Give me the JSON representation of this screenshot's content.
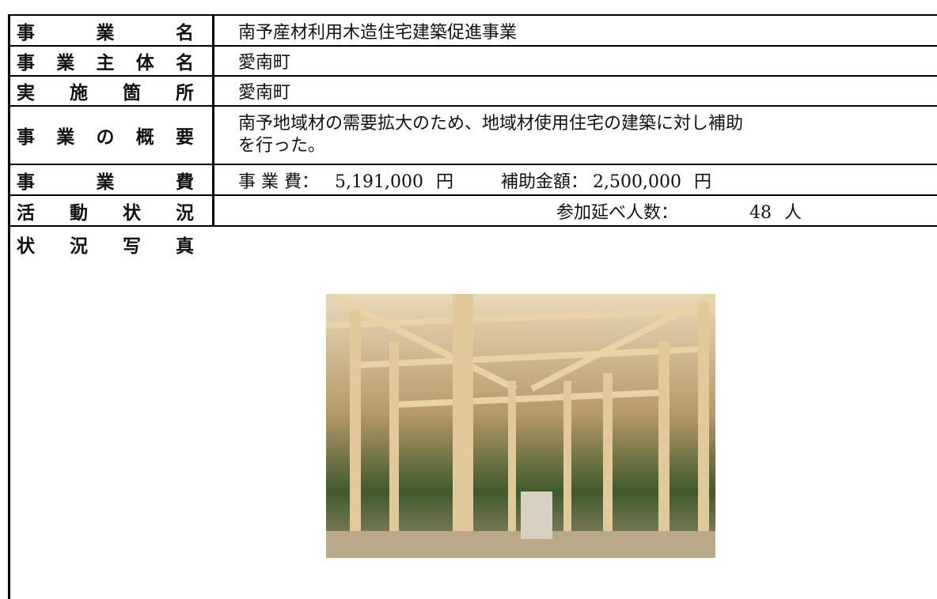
{
  "table": {
    "rows": [
      {
        "label": "事業名",
        "value": "南予産材利用木造住宅建築促進事業"
      },
      {
        "label": "事業主体名",
        "value": "愛南町"
      },
      {
        "label": "実施箇所",
        "value": "愛南町"
      },
      {
        "label": "事業の概要",
        "value": [
          "南予地域材の需要拡大のため、地域材使用住宅の建築に対し補助",
          "を行った。"
        ]
      },
      {
        "label": "事業費",
        "cost_label": "事 業 費：",
        "cost": "5,191,000",
        "cost_unit": "円",
        "subsidy_label": "補助金額：",
        "subsidy": "2,500,000",
        "subsidy_unit": "円"
      },
      {
        "label": "活動状況",
        "participants_label": "参加延べ人数：",
        "participants": "48",
        "participants_unit": "人"
      },
      {
        "label": "状況写真"
      }
    ]
  }
}
